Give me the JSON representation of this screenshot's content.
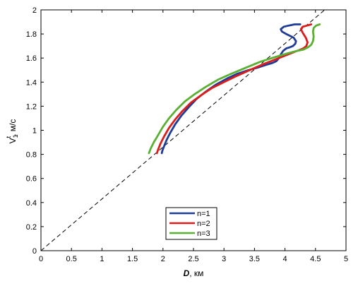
{
  "chart_data": {
    "type": "line",
    "xlabel_symbol": "D",
    "xlabel_unit": ", км",
    "ylabel_symbol": "V",
    "ylabel_subscript": "1",
    "ylabel_superscript": "t",
    "ylabel_unit": ", м/с",
    "xlim": [
      0,
      5
    ],
    "ylim": [
      0,
      2
    ],
    "xticks": [
      0,
      0.5,
      1,
      1.5,
      2,
      2.5,
      3,
      3.5,
      4,
      4.5,
      5
    ],
    "xtick_labels": [
      "0",
      "0.5",
      "1",
      "1.5",
      "2",
      "2.5",
      "3",
      "3.5",
      "4",
      "4.5",
      "5"
    ],
    "yticks": [
      0,
      0.2,
      0.4,
      0.6,
      0.8,
      1,
      1.2,
      1.4,
      1.6,
      1.8,
      2
    ],
    "ytick_labels": [
      "0",
      "0.2",
      "0.4",
      "0.6",
      "0.8",
      "1",
      "1.2",
      "1.4",
      "1.6",
      "1.8",
      "2"
    ],
    "grid": false,
    "legend_position": "bottom-center",
    "reference_line": {
      "x": [
        0,
        4.65
      ],
      "y": [
        0,
        2.0
      ],
      "style": "dashed",
      "color": "#000000"
    },
    "series": [
      {
        "name": "n=1",
        "color": "#1f3c99",
        "x": [
          1.98,
          1.99,
          2.02,
          2.06,
          2.12,
          2.2,
          2.3,
          2.42,
          2.55,
          2.7,
          2.87,
          3.05,
          3.22,
          3.4,
          3.55,
          3.7,
          3.8,
          3.86,
          3.9,
          3.93,
          3.97,
          4.02,
          4.08,
          4.13,
          4.17,
          4.18,
          4.14,
          4.02,
          3.95,
          3.93,
          3.98,
          4.06,
          4.16,
          4.25
        ],
        "y": [
          0.81,
          0.83,
          0.87,
          0.92,
          0.98,
          1.05,
          1.12,
          1.19,
          1.26,
          1.32,
          1.38,
          1.43,
          1.47,
          1.5,
          1.52,
          1.545,
          1.56,
          1.575,
          1.6,
          1.63,
          1.66,
          1.68,
          1.69,
          1.7,
          1.72,
          1.74,
          1.77,
          1.8,
          1.82,
          1.84,
          1.86,
          1.87,
          1.88,
          1.88
        ]
      },
      {
        "name": "n=2",
        "color": "#dd1c1c",
        "x": [
          1.9,
          1.92,
          1.96,
          2.02,
          2.1,
          2.2,
          2.32,
          2.46,
          2.62,
          2.8,
          3.0,
          3.2,
          3.42,
          3.65,
          3.85,
          4.05,
          4.2,
          4.3,
          4.35,
          4.37,
          4.34,
          4.29,
          4.26,
          4.29,
          4.36,
          4.43
        ],
        "y": [
          0.81,
          0.84,
          0.89,
          0.95,
          1.02,
          1.09,
          1.16,
          1.23,
          1.29,
          1.35,
          1.4,
          1.45,
          1.5,
          1.55,
          1.59,
          1.63,
          1.66,
          1.68,
          1.7,
          1.73,
          1.77,
          1.81,
          1.84,
          1.86,
          1.87,
          1.88
        ]
      },
      {
        "name": "n=3",
        "color": "#5ab033",
        "x": [
          1.77,
          1.8,
          1.85,
          1.92,
          2.0,
          2.1,
          2.22,
          2.36,
          2.52,
          2.7,
          2.9,
          3.12,
          3.36,
          3.6,
          3.85,
          4.05,
          4.2,
          4.3,
          4.38,
          4.43,
          4.46,
          4.47,
          4.46,
          4.47,
          4.51,
          4.57
        ],
        "y": [
          0.81,
          0.85,
          0.9,
          0.96,
          1.03,
          1.1,
          1.17,
          1.24,
          1.3,
          1.36,
          1.42,
          1.47,
          1.52,
          1.57,
          1.61,
          1.64,
          1.66,
          1.67,
          1.69,
          1.71,
          1.74,
          1.78,
          1.82,
          1.85,
          1.87,
          1.88
        ]
      }
    ]
  }
}
